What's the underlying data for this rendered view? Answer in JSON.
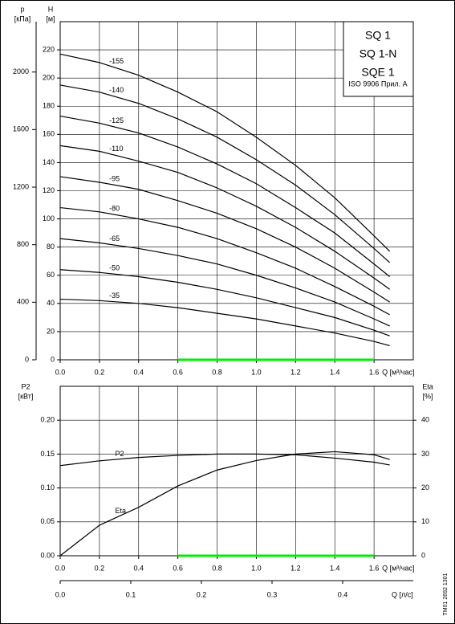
{
  "chart_data": [
    {
      "type": "line",
      "title_box": [
        "SQ 1",
        "SQ 1-N",
        "SQE 1",
        "ISO 9906 Прил. A"
      ],
      "x": [
        0,
        0.2,
        0.4,
        0.6,
        0.8,
        1.0,
        1.2,
        1.4,
        1.6,
        1.68
      ],
      "xlim": [
        0,
        1.8
      ],
      "xticks": [
        {
          "value": 0,
          "label": "0.0"
        },
        0.2,
        0.4,
        0.6,
        0.8,
        {
          "value": 1,
          "label": "1.0"
        },
        1.2,
        1.4,
        1.6
      ],
      "xlabel": "Q [м³/час]",
      "ylabel": "H",
      "yunit": "[м]",
      "ylim": [
        0,
        240
      ],
      "yticks": [
        0,
        20,
        40,
        60,
        80,
        100,
        120,
        140,
        160,
        180,
        200,
        220
      ],
      "y2label": "p",
      "y2unit": "[кПа]",
      "y2lim": [
        0,
        2350
      ],
      "y2ticks": [
        0,
        400,
        800,
        1200,
        1600,
        2000
      ],
      "grid": true,
      "highlight": {
        "range": [
          0.6,
          1.6
        ],
        "color": "#00ee00"
      },
      "series": [
        {
          "name": "-155",
          "color": "#000000",
          "values": [
            217,
            211,
            202,
            190,
            176,
            158,
            138,
            115,
            88,
            77
          ]
        },
        {
          "name": "-140",
          "color": "#000000",
          "values": [
            195,
            190,
            182,
            171,
            158,
            142,
            124,
            103,
            79,
            69
          ]
        },
        {
          "name": "-125",
          "color": "#000000",
          "values": [
            173,
            168,
            161,
            151,
            139,
            125,
            108,
            90,
            68,
            59
          ]
        },
        {
          "name": "-110",
          "color": "#000000",
          "values": [
            152,
            148,
            141,
            133,
            122,
            109,
            94,
            77,
            58,
            50
          ]
        },
        {
          "name": "-95",
          "color": "#000000",
          "values": [
            130,
            126,
            121,
            113,
            104,
            93,
            80,
            65,
            48,
            41
          ]
        },
        {
          "name": "-80",
          "color": "#000000",
          "values": [
            108,
            105,
            100,
            94,
            86,
            76,
            65,
            52,
            38,
            32
          ]
        },
        {
          "name": "-65",
          "color": "#000000",
          "values": [
            86,
            83,
            79,
            74,
            68,
            60,
            51,
            41,
            29,
            24
          ]
        },
        {
          "name": "-50",
          "color": "#000000",
          "values": [
            64,
            62,
            59,
            55,
            50,
            44,
            37,
            30,
            21,
            17
          ]
        },
        {
          "name": "-35",
          "color": "#000000",
          "values": [
            43,
            42,
            40,
            37,
            33,
            29,
            24,
            19,
            13,
            10
          ]
        }
      ]
    },
    {
      "type": "line",
      "x": [
        0,
        0.2,
        0.4,
        0.6,
        0.8,
        1.0,
        1.2,
        1.4,
        1.6,
        1.68
      ],
      "xlim": [
        0,
        1.8
      ],
      "xticks": [
        {
          "value": 0,
          "label": "0.0"
        },
        0.2,
        0.4,
        0.6,
        0.8,
        {
          "value": 1,
          "label": "1.0"
        },
        1.2,
        1.4,
        1.6
      ],
      "xlabel": "Q [м³/час]",
      "x2lim": [
        0,
        0.5
      ],
      "x2ticks": [
        {
          "value": 0,
          "label": "0.0"
        },
        0.1,
        0.2,
        0.3,
        0.4
      ],
      "x2label": "Q [л/с]",
      "ylabel": "P2",
      "yunit": "[кВт]",
      "ylim": [
        0,
        0.25
      ],
      "yticks": [
        {
          "value": 0,
          "label": "0.00"
        },
        {
          "value": 0.05,
          "label": "0.05"
        },
        {
          "value": 0.1,
          "label": "0.10"
        },
        {
          "value": 0.15,
          "label": "0.15"
        },
        {
          "value": 0.2,
          "label": "0.20"
        }
      ],
      "y2label": "Eta",
      "y2unit": "[%]",
      "y2lim": [
        0,
        50
      ],
      "y2ticks": [
        0,
        10,
        20,
        30,
        40
      ],
      "grid": true,
      "highlight": {
        "range": [
          0.6,
          1.6
        ],
        "color": "#00ee00"
      },
      "series": [
        {
          "name": "P2",
          "color": "#000000",
          "values": [
            0.133,
            0.14,
            0.145,
            0.148,
            0.15,
            0.15,
            0.149,
            0.144,
            0.138,
            0.134
          ]
        },
        {
          "name": "Eta",
          "color": "#000000",
          "axis": "y2",
          "values": [
            0,
            9,
            14.3,
            20.6,
            25.3,
            28.1,
            30,
            30.7,
            29.8,
            28.4
          ]
        }
      ]
    }
  ],
  "code": "TM01 2692 1301"
}
